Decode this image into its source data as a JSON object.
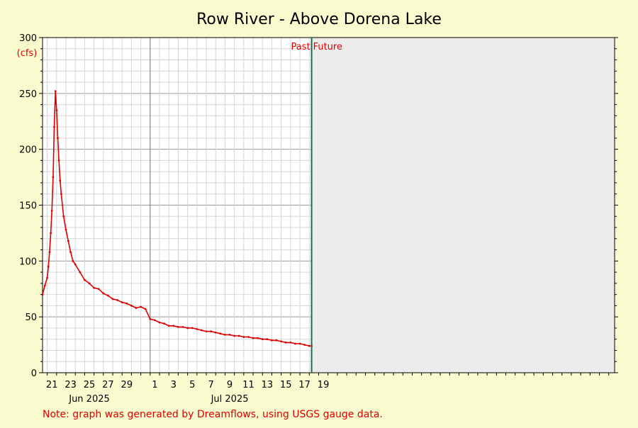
{
  "colors": {
    "background": "#fbfbd0",
    "plot_background": "#ffffff",
    "series": "#dd0000",
    "future_shade": "#ececec",
    "now_line": "#1e6b4a",
    "grid_major": "#9a9a9a",
    "grid_minor": "#d6d6d6",
    "note": "#dd0000"
  },
  "note": "Note: graph was generated by Dreamflows, using USGS gauge data.",
  "chart_data": {
    "type": "line",
    "title": "Row River - Above Dorena Lake",
    "ylabel": "(cfs)",
    "xlabel": "",
    "ylim": [
      0,
      300
    ],
    "y_ticks": [
      0,
      50,
      100,
      150,
      200,
      250,
      300
    ],
    "xlim": [
      "2025-05-20T12:00",
      "2025-07-20T15:00"
    ],
    "x_tick_labels": [
      {
        "date": "2025-05-21",
        "label": "21"
      },
      {
        "date": "2025-05-23",
        "label": "23"
      },
      {
        "date": "2025-05-25",
        "label": "25"
      },
      {
        "date": "2025-05-27",
        "label": "27"
      },
      {
        "date": "2025-05-29",
        "label": "29"
      },
      {
        "date": "2025-06-01",
        "label": "1"
      },
      {
        "date": "2025-06-03",
        "label": "3"
      },
      {
        "date": "2025-06-05",
        "label": "5"
      },
      {
        "date": "2025-06-07",
        "label": "7"
      },
      {
        "date": "2025-06-09",
        "label": "9"
      },
      {
        "date": "2025-06-11",
        "label": "11"
      },
      {
        "date": "2025-06-13",
        "label": "13"
      },
      {
        "date": "2025-06-15",
        "label": "15"
      },
      {
        "date": "2025-06-17",
        "label": "17"
      },
      {
        "date": "2025-06-19",
        "label": "19"
      }
    ],
    "month_labels": [
      {
        "date": "2025-05-25",
        "label": "Jun 2025"
      },
      {
        "date": "2025-06-09",
        "label": "Jul 2025"
      }
    ],
    "month_boundary": "2025-06-01",
    "now": "2025-06-18T06:00",
    "past_label": "Past",
    "future_label": "Future",
    "grid": true,
    "series": [
      {
        "x": [
          "2025-05-20T12:00",
          "2025-05-20T18:00",
          "2025-05-21T00:00",
          "2025-05-21T03:00",
          "2025-05-21T06:00",
          "2025-05-21T09:00",
          "2025-05-21T12:00",
          "2025-05-21T15:00",
          "2025-05-21T18:00",
          "2025-05-21T21:00",
          "2025-05-22T00:00",
          "2025-05-22T03:00",
          "2025-05-22T06:00",
          "2025-05-22T09:00",
          "2025-05-22T12:00",
          "2025-05-22T18:00",
          "2025-05-23T00:00",
          "2025-05-23T06:00",
          "2025-05-23T12:00",
          "2025-05-23T18:00",
          "2025-05-24T00:00",
          "2025-05-24T12:00",
          "2025-05-25T00:00",
          "2025-05-25T12:00",
          "2025-05-26T00:00",
          "2025-05-26T12:00",
          "2025-05-27T00:00",
          "2025-05-27T12:00",
          "2025-05-28T00:00",
          "2025-05-28T12:00",
          "2025-05-29T00:00",
          "2025-05-29T12:00",
          "2025-05-30T00:00",
          "2025-05-30T12:00",
          "2025-05-31T00:00",
          "2025-05-31T12:00",
          "2025-06-01T00:00",
          "2025-06-01T12:00",
          "2025-06-02T00:00",
          "2025-06-02T12:00",
          "2025-06-03T00:00",
          "2025-06-03T12:00",
          "2025-06-04T00:00",
          "2025-06-04T12:00",
          "2025-06-05T00:00",
          "2025-06-05T12:00",
          "2025-06-06T00:00",
          "2025-06-06T12:00",
          "2025-06-07T00:00",
          "2025-06-07T12:00",
          "2025-06-08T00:00",
          "2025-06-08T12:00",
          "2025-06-09T00:00",
          "2025-06-09T12:00",
          "2025-06-10T00:00",
          "2025-06-10T12:00",
          "2025-06-11T00:00",
          "2025-06-11T12:00",
          "2025-06-12T00:00",
          "2025-06-12T12:00",
          "2025-06-13T00:00",
          "2025-06-13T12:00",
          "2025-06-14T00:00",
          "2025-06-14T12:00",
          "2025-06-15T00:00",
          "2025-06-15T12:00",
          "2025-06-16T00:00",
          "2025-06-16T12:00",
          "2025-06-17T00:00",
          "2025-06-17T12:00",
          "2025-06-18T00:00",
          "2025-06-18T06:00"
        ],
        "values": [
          70,
          78,
          85,
          95,
          108,
          125,
          145,
          175,
          220,
          252,
          235,
          210,
          190,
          172,
          160,
          140,
          128,
          118,
          108,
          100,
          97,
          90,
          83,
          80,
          76,
          75,
          71,
          69,
          66,
          65,
          63,
          62,
          60,
          58,
          59,
          57,
          48,
          47,
          45,
          44,
          42,
          42,
          41,
          41,
          40,
          40,
          39,
          38,
          37,
          37,
          36,
          35,
          34,
          34,
          33,
          33,
          32,
          32,
          31,
          31,
          30,
          30,
          29,
          29,
          28,
          27,
          27,
          26,
          26,
          25,
          24,
          24
        ]
      }
    ]
  }
}
